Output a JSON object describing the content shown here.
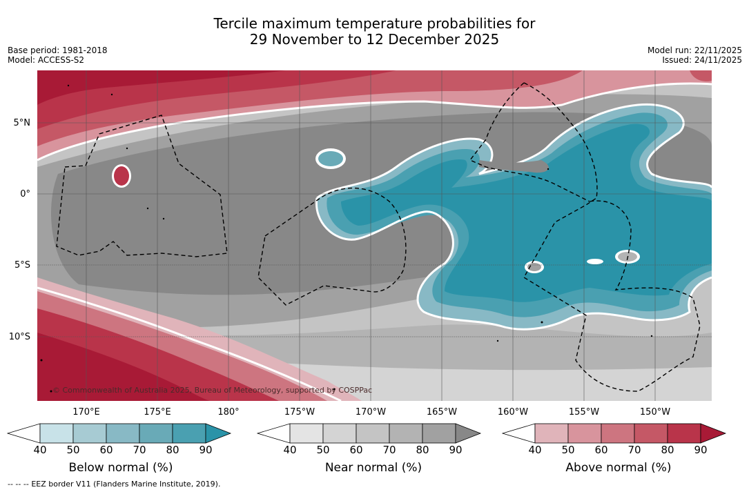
{
  "header": {
    "title_line1": "Tercile maximum temperature probabilities for",
    "title_line2": "29 November to 12 December 2025",
    "base_period": "Base period: 1981-2018",
    "model": "Model: ACCESS-S2",
    "model_run": "Model run: 22/11/2025",
    "issued": "Issued: 24/11/2025"
  },
  "map": {
    "lat_ticks": [
      "5°N",
      "0°",
      "5°S",
      "10°S"
    ],
    "lon_ticks": [
      "170°E",
      "175°E",
      "180°",
      "175°W",
      "170°W",
      "165°W",
      "160°W",
      "155°W",
      "150°W"
    ],
    "copyright": "© Commonwealth of Australia 2025, Bureau of Meteorology, supported by COSPPac"
  },
  "colorbars": [
    {
      "title": "Below normal (%)",
      "labels": [
        "40",
        "50",
        "60",
        "70",
        "80",
        "90"
      ],
      "colors": [
        "#ffffff",
        "#c8e2e8",
        "#a7cbd3",
        "#88b9c5",
        "#69aab7",
        "#4aa0b1",
        "#2a93a8"
      ]
    },
    {
      "title": "Near normal (%)",
      "labels": [
        "40",
        "50",
        "60",
        "70",
        "80",
        "90"
      ],
      "colors": [
        "#ffffff",
        "#e4e4e4",
        "#d4d4d4",
        "#c4c4c4",
        "#b3b3b3",
        "#a1a1a1",
        "#888888"
      ]
    },
    {
      "title": "Above normal (%)",
      "labels": [
        "40",
        "50",
        "60",
        "70",
        "80",
        "90"
      ],
      "colors": [
        "#ffffff",
        "#e0b4ba",
        "#d8949d",
        "#cd7580",
        "#c55866",
        "#b9344a",
        "#a81a36"
      ]
    }
  ],
  "footer": {
    "legend_symbol": "-- -- --",
    "legend_text": "EEZ border V11 (Flanders Marine Institute, 2019)."
  }
}
